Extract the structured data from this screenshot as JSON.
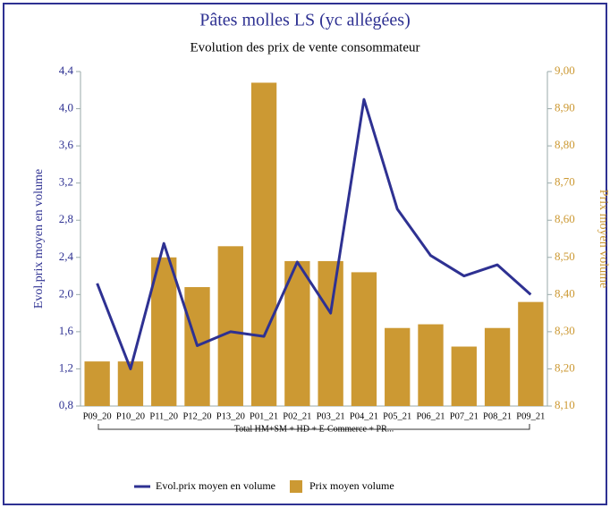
{
  "chart_data": {
    "type": "bar",
    "title": "Pâtes molles LS (yc allégées)",
    "subtitle": "Evolution des prix de vente consommateur",
    "ylabel": "Evol.prix moyen en volume",
    "y2label": "Prix moyen volume",
    "annotation": "Total HM+SM + HD + E-Commerce + PR...",
    "categories": [
      "P09_20",
      "P10_20",
      "P11_20",
      "P12_20",
      "P13_20",
      "P01_21",
      "P02_21",
      "P03_21",
      "P04_21",
      "P05_21",
      "P06_21",
      "P07_21",
      "P08_21",
      "P09_21"
    ],
    "series": [
      {
        "name": "Evol.prix moyen en volume",
        "type": "line",
        "color": "#2e3192",
        "axis": "y",
        "values": [
          2.12,
          1.2,
          2.55,
          1.45,
          1.6,
          1.55,
          2.35,
          1.8,
          4.1,
          2.92,
          2.42,
          2.2,
          2.32,
          2.0
        ]
      },
      {
        "name": "Prix moyen volume",
        "type": "bar",
        "color": "#cc9933",
        "axis": "y2",
        "values": [
          8.22,
          8.22,
          8.5,
          8.42,
          8.53,
          8.97,
          8.49,
          8.49,
          8.46,
          8.31,
          8.32,
          8.26,
          8.31,
          8.38
        ]
      }
    ],
    "ylim": [
      0.8,
      4.4
    ],
    "yticks": [
      {
        "value": 0.8,
        "label": "0,8"
      },
      {
        "value": 1.2,
        "label": "1,2"
      },
      {
        "value": 1.6,
        "label": "1,6"
      },
      {
        "value": 2.0,
        "label": "2,0"
      },
      {
        "value": 2.4,
        "label": "2,4"
      },
      {
        "value": 2.8,
        "label": "2,8"
      },
      {
        "value": 3.2,
        "label": "3,2"
      },
      {
        "value": 3.6,
        "label": "3,6"
      },
      {
        "value": 4.0,
        "label": "4,0"
      },
      {
        "value": 4.4,
        "label": "4,4"
      }
    ],
    "y2lim": [
      8.1,
      9.0
    ],
    "y2ticks": [
      {
        "value": 8.1,
        "label": "8,10"
      },
      {
        "value": 8.2,
        "label": "8,20"
      },
      {
        "value": 8.3,
        "label": "8,30"
      },
      {
        "value": 8.4,
        "label": "8,40"
      },
      {
        "value": 8.5,
        "label": "8,50"
      },
      {
        "value": 8.6,
        "label": "8,60"
      },
      {
        "value": 8.7,
        "label": "8,70"
      },
      {
        "value": 8.8,
        "label": "8,80"
      },
      {
        "value": 8.9,
        "label": "8,90"
      },
      {
        "value": 9.0,
        "label": "9,00"
      }
    ],
    "grid": false,
    "legend": "bottom"
  }
}
